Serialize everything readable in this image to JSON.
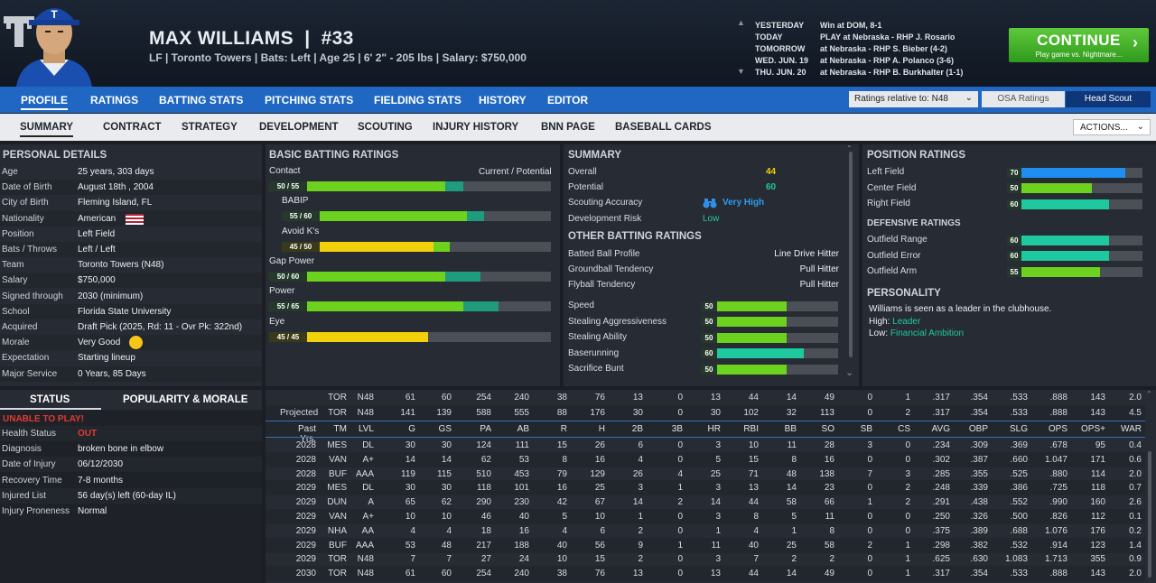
{
  "player": {
    "name": "MAX WILLIAMS",
    "number": "#33",
    "info": "LF | Toronto Towers  |  Bats: Left  |  Age 25  |  6' 2\"  - 205 lbs  |  Salary: $750,000"
  },
  "schedule": [
    {
      "day": "YESTERDAY",
      "text": "Win at DOM, 8-1"
    },
    {
      "day": "TODAY",
      "text": "PLAY at Nebraska - RHP J. Rosario"
    },
    {
      "day": "TOMORROW",
      "text": "at Nebraska - RHP S. Bieber (4-2)"
    },
    {
      "day": "WED. JUN. 19",
      "text": "at Nebraska - RHP A. Polanco (3-6)"
    },
    {
      "day": "THU. JUN. 20",
      "text": "at Nebraska - RHP B. Burkhalter (1-1)"
    }
  ],
  "continue": {
    "label": "CONTINUE",
    "sub": "Play game vs. Nightmare..."
  },
  "nav1": [
    "PROFILE",
    "RATINGS",
    "BATTING STATS",
    "PITCHING STATS",
    "FIELDING STATS",
    "HISTORY",
    "EDITOR"
  ],
  "ratings_rel": "Ratings relative to: N48",
  "osa": "OSA Ratings",
  "head_scout": "Head Scout",
  "nav2": [
    "SUMMARY",
    "CONTRACT",
    "STRATEGY",
    "DEVELOPMENT",
    "SCOUTING",
    "INJURY HISTORY",
    "BNN PAGE",
    "BASEBALL CARDS"
  ],
  "actions": "ACTIONS...",
  "personal": {
    "title": "PERSONAL DETAILS",
    "rows": [
      {
        "l": "Age",
        "v": "25 years, 303 days"
      },
      {
        "l": "Date of Birth",
        "v": "August 18th , 2004"
      },
      {
        "l": "City of Birth",
        "v": "Fleming Island, FL"
      },
      {
        "l": "Nationality",
        "v": "American"
      },
      {
        "l": "Position",
        "v": "Left Field"
      },
      {
        "l": "Bats / Throws",
        "v": "Left / Left"
      },
      {
        "l": "Team",
        "v": "Toronto Towers (N48)"
      },
      {
        "l": "Salary",
        "v": "$750,000"
      },
      {
        "l": "Signed through",
        "v": "2030 (minimum)"
      },
      {
        "l": "School",
        "v": "Florida State University"
      },
      {
        "l": "Acquired",
        "v": "Draft Pick (2025, Rd: 11 - Ovr Pk: 322nd)"
      },
      {
        "l": "Morale",
        "v": "Very Good"
      },
      {
        "l": "Expectation",
        "v": "Starting lineup"
      },
      {
        "l": "Major Service",
        "v": "0 Years, 85 Days"
      }
    ]
  },
  "status": {
    "tab1": "STATUS",
    "tab2": "POPULARITY & MORALE",
    "alert": "UNABLE TO PLAY!",
    "rows": [
      {
        "l": "Health Status",
        "v": "OUT"
      },
      {
        "l": "Diagnosis",
        "v": "broken bone in elbow"
      },
      {
        "l": "Date of Injury",
        "v": "06/12/2030"
      },
      {
        "l": "Recovery Time",
        "v": "7-8 months"
      },
      {
        "l": "Injured List",
        "v": "56 day(s) left (60-day IL)"
      },
      {
        "l": "Injury Proneness",
        "v": "Normal"
      }
    ]
  },
  "batting": {
    "title": "BASIC BATTING RATINGS",
    "cp": "Current / Potential",
    "items": [
      {
        "name": "Contact",
        "label": "50 / 55",
        "cur": 50,
        "pot": 55,
        "color": "#6cd21e",
        "indent": false
      },
      {
        "name": "BABIP",
        "label": "55 / 60",
        "cur": 55,
        "pot": 60,
        "color": "#6cd21e",
        "indent": true
      },
      {
        "name": "Avoid K's",
        "label": "45 / 50",
        "cur": 45,
        "pot": 50,
        "color": "#f2d10a",
        "indent": true
      },
      {
        "name": "Gap Power",
        "label": "50 / 60",
        "cur": 50,
        "pot": 60,
        "color": "#6cd21e",
        "indent": false
      },
      {
        "name": "Power",
        "label": "55 / 65",
        "cur": 55,
        "pot": 65,
        "color": "#6cd21e",
        "indent": false
      },
      {
        "name": "Eye",
        "label": "45 / 45",
        "cur": 45,
        "pot": 45,
        "color": "#f2d10a",
        "indent": false
      }
    ]
  },
  "summary": {
    "title": "SUMMARY",
    "overall_l": "Overall",
    "overall": "44",
    "potential_l": "Potential",
    "potential": "60",
    "scout_l": "Scouting Accuracy",
    "scout": "Very High",
    "dev_l": "Development Risk",
    "dev": "Low"
  },
  "other": {
    "title": "OTHER BATTING RATINGS",
    "profile": [
      {
        "l": "Batted Ball Profile",
        "v": "Line Drive Hitter"
      },
      {
        "l": "Groundball Tendency",
        "v": "Pull Hitter"
      },
      {
        "l": "Flyball Tendency",
        "v": "Pull Hitter"
      }
    ],
    "bars": [
      {
        "l": "Speed",
        "v": 50,
        "label": "50",
        "color": "#6cd21e"
      },
      {
        "l": "Stealing Aggressiveness",
        "v": 50,
        "label": "50",
        "color": "#6cd21e"
      },
      {
        "l": "Stealing Ability",
        "v": 50,
        "label": "50",
        "color": "#6cd21e"
      },
      {
        "l": "Baserunning",
        "v": 60,
        "label": "60",
        "color": "#1fc9a0"
      },
      {
        "l": "Sacrifice Bunt",
        "v": 50,
        "label": "50",
        "color": "#6cd21e"
      }
    ]
  },
  "position": {
    "title": "POSITION RATINGS",
    "items": [
      {
        "l": "Left Field",
        "v": 70,
        "label": "70",
        "color": "#1e8ff0"
      },
      {
        "l": "Center Field",
        "v": 50,
        "label": "50",
        "color": "#6cd21e"
      },
      {
        "l": "Right Field",
        "v": 60,
        "label": "60",
        "color": "#1fc9a0"
      }
    ],
    "def_title": "DEFENSIVE RATINGS",
    "def": [
      {
        "l": "Outfield Range",
        "v": 60,
        "label": "60",
        "color": "#1fc9a0"
      },
      {
        "l": "Outfield Error",
        "v": 60,
        "label": "60",
        "color": "#1fc9a0"
      },
      {
        "l": "Outfield Arm",
        "v": 55,
        "label": "55",
        "color": "#6cd21e"
      }
    ]
  },
  "personality": {
    "title": "PERSONALITY",
    "line": "Williams is seen as a leader in the clubhouse.",
    "high_l": "High:",
    "high": "Leader",
    "low_l": "Low:",
    "low": "Financial Ambition"
  },
  "stats": {
    "cols": [
      "",
      "TM",
      "LVL",
      "G",
      "GS",
      "PA",
      "AB",
      "R",
      "H",
      "2B",
      "3B",
      "HR",
      "RBI",
      "BB",
      "SO",
      "SB",
      "CS",
      "AVG",
      "OBP",
      "SLG",
      "OPS",
      "OPS+",
      "WAR"
    ],
    "top": [
      [
        "",
        "TOR",
        "N48",
        "61",
        "60",
        "254",
        "240",
        "38",
        "76",
        "13",
        "0",
        "13",
        "44",
        "14",
        "49",
        "0",
        "1",
        ".317",
        ".354",
        ".533",
        ".888",
        "143",
        "2.0"
      ],
      [
        "Projected",
        "TOR",
        "N48",
        "141",
        "139",
        "588",
        "555",
        "88",
        "176",
        "30",
        "0",
        "30",
        "102",
        "32",
        "113",
        "0",
        "2",
        ".317",
        ".354",
        ".533",
        ".888",
        "143",
        "4.5"
      ]
    ],
    "head_label": "Past Yrs.",
    "rows": [
      [
        "2028",
        "MES",
        "DL",
        "30",
        "30",
        "124",
        "111",
        "15",
        "26",
        "6",
        "0",
        "3",
        "10",
        "11",
        "28",
        "3",
        "0",
        ".234",
        ".309",
        ".369",
        ".678",
        "95",
        "0.4"
      ],
      [
        "2028",
        "VAN",
        "A+",
        "14",
        "14",
        "62",
        "53",
        "8",
        "16",
        "4",
        "0",
        "5",
        "15",
        "8",
        "16",
        "0",
        "0",
        ".302",
        ".387",
        ".660",
        "1.047",
        "171",
        "0.6"
      ],
      [
        "2028",
        "BUF",
        "AAA",
        "119",
        "115",
        "510",
        "453",
        "79",
        "129",
        "26",
        "4",
        "25",
        "71",
        "48",
        "138",
        "7",
        "3",
        ".285",
        ".355",
        ".525",
        ".880",
        "114",
        "2.0"
      ],
      [
        "2029",
        "MES",
        "DL",
        "30",
        "30",
        "118",
        "101",
        "16",
        "25",
        "3",
        "1",
        "3",
        "13",
        "14",
        "23",
        "0",
        "2",
        ".248",
        ".339",
        ".386",
        ".725",
        "118",
        "0.7"
      ],
      [
        "2029",
        "DUN",
        "A",
        "65",
        "62",
        "290",
        "230",
        "42",
        "67",
        "14",
        "2",
        "14",
        "44",
        "58",
        "66",
        "1",
        "2",
        ".291",
        ".438",
        ".552",
        ".990",
        "160",
        "2.6"
      ],
      [
        "2029",
        "VAN",
        "A+",
        "10",
        "10",
        "46",
        "40",
        "5",
        "10",
        "1",
        "0",
        "3",
        "8",
        "5",
        "11",
        "0",
        "0",
        ".250",
        ".326",
        ".500",
        ".826",
        "112",
        "0.1"
      ],
      [
        "2029",
        "NHA",
        "AA",
        "4",
        "4",
        "18",
        "16",
        "4",
        "6",
        "2",
        "0",
        "1",
        "4",
        "1",
        "8",
        "0",
        "0",
        ".375",
        ".389",
        ".688",
        "1.076",
        "176",
        "0.2"
      ],
      [
        "2029",
        "BUF",
        "AAA",
        "53",
        "48",
        "217",
        "188",
        "40",
        "56",
        "9",
        "1",
        "11",
        "40",
        "25",
        "58",
        "2",
        "1",
        ".298",
        ".382",
        ".532",
        ".914",
        "123",
        "1.4"
      ],
      [
        "2029",
        "TOR",
        "N48",
        "7",
        "7",
        "27",
        "24",
        "10",
        "15",
        "2",
        "0",
        "3",
        "7",
        "2",
        "2",
        "0",
        "1",
        ".625",
        ".630",
        "1.083",
        "1.713",
        "355",
        "0.9"
      ],
      [
        "2030",
        "TOR",
        "N48",
        "61",
        "60",
        "254",
        "240",
        "38",
        "76",
        "13",
        "0",
        "13",
        "44",
        "14",
        "49",
        "0",
        "1",
        ".317",
        ".354",
        ".533",
        ".888",
        "143",
        "2.0"
      ]
    ]
  }
}
